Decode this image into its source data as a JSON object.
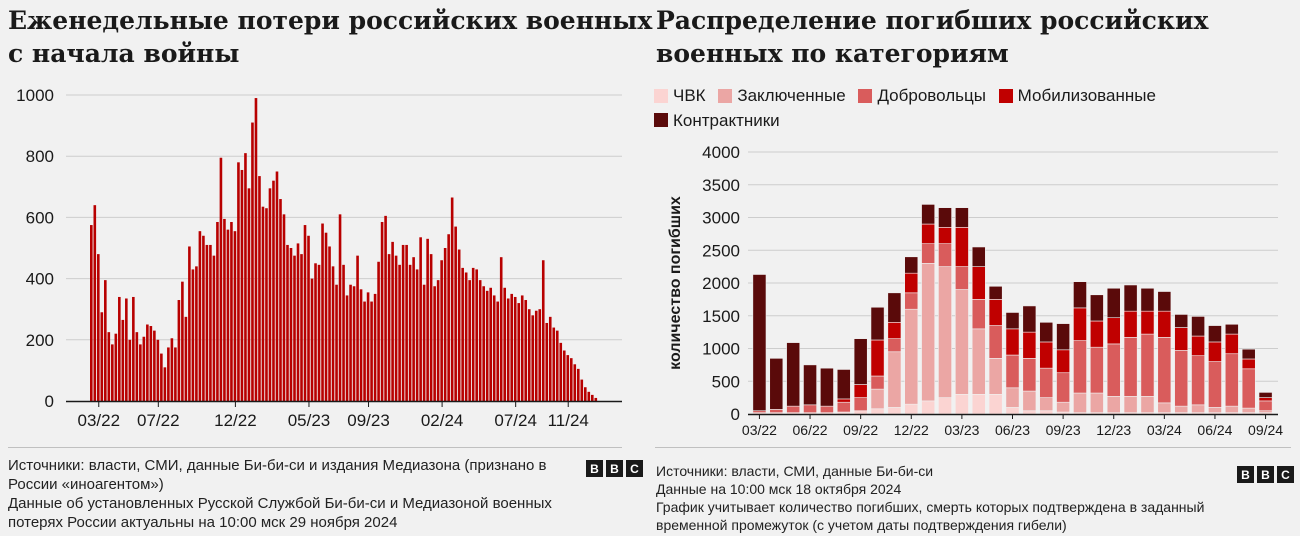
{
  "left": {
    "title": "Еженедельные потери российских военных с начала войны",
    "footer": {
      "line1": "Источники: власти, СМИ, данные Би-би-си и издания Медиазона (признано в России «иноагентом»)",
      "line2": "Данные об установленных Русской Службой Би-би-си и Медиазоной военных потерях России актуальны на 10:00 мск 29 ноября 2024"
    },
    "logo": [
      "B",
      "B",
      "C"
    ]
  },
  "right": {
    "title": "Распределение погибших российских военных по категориям",
    "footer": {
      "line1": "Источники: власти, СМИ, данные Би-би-си",
      "line2": "Данные на 10:00 мск 18 октября 2024",
      "line3": "График учитывает количество погибших, смерть которых подтверждена в заданный временной промежуток (с учетом даты подтверждения гибели)"
    },
    "logo": [
      "B",
      "B",
      "C"
    ]
  },
  "colors": {
    "bar_left": "#b80000",
    "pmc": "#fbd4d2",
    "prisoners": "#eba6a4",
    "volunteers": "#d95c5c",
    "mobilized": "#c00000",
    "contract": "#5a0a0a"
  },
  "chart_data": [
    {
      "type": "bar",
      "title": "Еженедельные потери российских военных с начала войны",
      "ylim": [
        0,
        1000
      ],
      "yticks": [
        0,
        200,
        400,
        600,
        800,
        1000
      ],
      "xticks": [
        "03/22",
        "07/22",
        "12/22",
        "05/23",
        "09/23",
        "02/24",
        "07/24",
        "11/24"
      ],
      "xtick_index": [
        2,
        19,
        41,
        62,
        79,
        100,
        121,
        136
      ],
      "values": [
        575,
        640,
        480,
        290,
        395,
        225,
        185,
        220,
        340,
        265,
        335,
        200,
        340,
        225,
        185,
        210,
        250,
        245,
        230,
        200,
        155,
        110,
        175,
        205,
        175,
        330,
        390,
        275,
        505,
        430,
        440,
        555,
        540,
        510,
        510,
        475,
        585,
        795,
        595,
        560,
        585,
        555,
        780,
        755,
        810,
        695,
        910,
        990,
        735,
        635,
        630,
        695,
        720,
        750,
        660,
        610,
        510,
        500,
        475,
        515,
        480,
        575,
        540,
        400,
        450,
        445,
        580,
        550,
        505,
        440,
        380,
        610,
        445,
        345,
        380,
        375,
        475,
        365,
        325,
        355,
        325,
        350,
        455,
        585,
        605,
        480,
        520,
        475,
        445,
        510,
        510,
        445,
        470,
        430,
        535,
        380,
        530,
        480,
        375,
        395,
        460,
        500,
        545,
        665,
        570,
        495,
        435,
        420,
        395,
        435,
        430,
        395,
        375,
        360,
        370,
        345,
        325,
        470,
        370,
        335,
        350,
        340,
        320,
        345,
        330,
        300,
        280,
        295,
        300,
        460,
        255,
        275,
        240,
        230,
        190,
        165,
        150,
        140,
        120,
        105,
        70,
        45,
        30,
        20,
        10
      ]
    },
    {
      "type": "bar",
      "stacked": true,
      "title": "Распределение погибших российских военных по категориям",
      "ylabel": "количество погибших",
      "ylim": [
        0,
        4000
      ],
      "yticks": [
        0,
        500,
        1000,
        1500,
        2000,
        2500,
        3000,
        3500,
        4000
      ],
      "xticks": [
        "03/22",
        "06/22",
        "09/22",
        "12/22",
        "03/23",
        "06/23",
        "09/23",
        "12/23",
        "03/24",
        "06/24",
        "09/24"
      ],
      "xtick_index": [
        0,
        3,
        6,
        9,
        12,
        15,
        18,
        21,
        24,
        27,
        30
      ],
      "legend": [
        "ЧВК",
        "Заключенные",
        "Добровольцы",
        "Мобилизованные",
        "Контрактники"
      ],
      "series": [
        {
          "name": "ЧВК",
          "values": [
            20,
            20,
            20,
            20,
            20,
            30,
            50,
            80,
            100,
            150,
            200,
            250,
            300,
            300,
            300,
            100,
            50,
            50,
            30,
            20,
            20,
            20,
            20,
            20,
            20,
            20,
            20,
            20,
            20,
            20,
            20
          ]
        },
        {
          "name": "Заключенные",
          "values": [
            0,
            0,
            0,
            0,
            0,
            0,
            0,
            300,
            850,
            1450,
            2100,
            2000,
            1600,
            1000,
            550,
            300,
            300,
            200,
            150,
            300,
            300,
            250,
            250,
            250,
            150,
            100,
            120,
            80,
            100,
            70,
            30
          ]
        },
        {
          "name": "Добровольцы",
          "values": [
            30,
            50,
            100,
            120,
            100,
            150,
            200,
            200,
            200,
            250,
            300,
            350,
            350,
            450,
            500,
            500,
            500,
            450,
            450,
            800,
            700,
            800,
            900,
            950,
            1000,
            850,
            750,
            700,
            800,
            600,
            150
          ]
        },
        {
          "name": "Мобилизованные",
          "values": [
            0,
            0,
            0,
            0,
            0,
            50,
            200,
            550,
            250,
            300,
            300,
            250,
            600,
            500,
            400,
            400,
            400,
            400,
            350,
            500,
            400,
            400,
            400,
            350,
            400,
            350,
            300,
            300,
            300,
            150,
            50
          ]
        },
        {
          "name": "Контрактники",
          "values": [
            2080,
            780,
            970,
            610,
            580,
            450,
            700,
            500,
            450,
            250,
            300,
            300,
            300,
            300,
            200,
            250,
            400,
            300,
            400,
            400,
            400,
            450,
            400,
            350,
            300,
            200,
            300,
            250,
            150,
            150,
            80
          ]
        }
      ]
    }
  ]
}
